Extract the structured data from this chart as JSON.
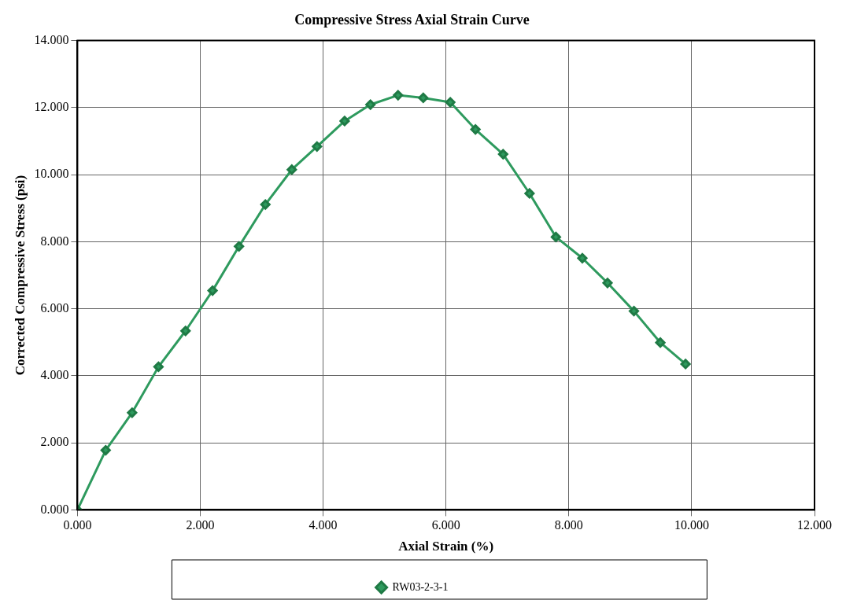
{
  "chart_data": {
    "type": "line",
    "title": "Compressive Stress Axial Strain Curve",
    "xlabel": "Axial Strain (%)",
    "ylabel": "Corrected Compressive Stress (psi)",
    "xlim": [
      0,
      12
    ],
    "xticks": [
      {
        "value": 0,
        "label": "0.000"
      },
      {
        "value": 2,
        "label": "2.000"
      },
      {
        "value": 4,
        "label": "4.000"
      },
      {
        "value": 6,
        "label": "6.000"
      },
      {
        "value": 8,
        "label": "8.000"
      },
      {
        "value": 10,
        "label": "10.000"
      },
      {
        "value": 12,
        "label": "12.000"
      }
    ],
    "ylim": [
      0,
      14
    ],
    "yticks": [
      {
        "value": 0,
        "label": "0.000"
      },
      {
        "value": 2,
        "label": "2.000"
      },
      {
        "value": 4,
        "label": "4.000"
      },
      {
        "value": 6,
        "label": "6.000"
      },
      {
        "value": 8,
        "label": "8.000"
      },
      {
        "value": 10,
        "label": "10.000"
      },
      {
        "value": 12,
        "label": "12.000"
      },
      {
        "value": 14,
        "label": "14.000"
      }
    ],
    "grid": true,
    "legend": "bottom",
    "marker": "diamond",
    "line_style": "solid",
    "series": [
      {
        "name": "RW03-2-3-1",
        "color": "#2e9a5e",
        "x": [
          0,
          0.46,
          0.89,
          1.32,
          1.76,
          2.2,
          2.63,
          3.06,
          3.49,
          3.9,
          4.35,
          4.77,
          5.22,
          5.63,
          6.07,
          6.48,
          6.93,
          7.36,
          7.79,
          8.22,
          8.63,
          9.06,
          9.49,
          9.9
        ],
        "values": [
          0,
          1.78,
          2.9,
          4.27,
          5.34,
          6.54,
          7.86,
          9.11,
          10.15,
          10.84,
          11.6,
          12.09,
          12.37,
          12.29,
          12.16,
          11.35,
          10.61,
          9.44,
          8.14,
          7.51,
          6.77,
          5.93,
          4.99,
          4.35
        ]
      }
    ]
  }
}
